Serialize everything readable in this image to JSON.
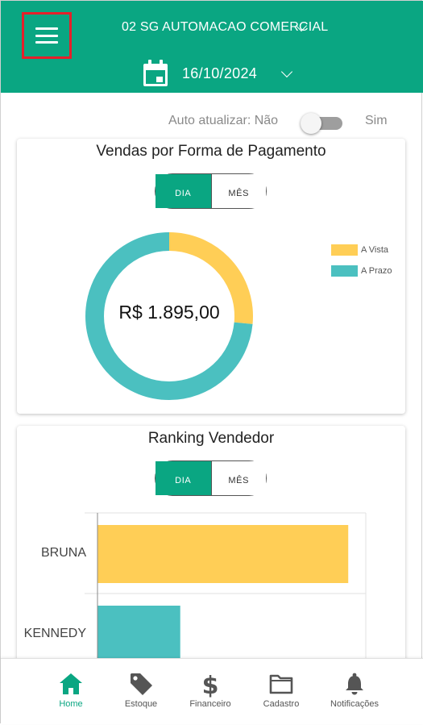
{
  "header": {
    "store_name": "02 SG AUTOMACAO COMERCIAL",
    "date": "16/10/2024"
  },
  "auto_refresh": {
    "label": "Auto atualizar: Não",
    "yes_label": "Sim",
    "enabled": false
  },
  "payment_card": {
    "title": "Vendas por Forma de Pagamento",
    "tabs": [
      {
        "label": "DIA",
        "active": true
      },
      {
        "label": "MÊS",
        "active": false
      }
    ],
    "total": "R$ 1.895,00",
    "legend": [
      {
        "label": "A Vista",
        "color": "#ffce56"
      },
      {
        "label": "A Prazo",
        "color": "#4bc0c0"
      }
    ]
  },
  "chart_data": [
    {
      "type": "pie",
      "title": "Vendas por Forma de Pagamento",
      "categories": [
        "A Vista",
        "A Prazo"
      ],
      "values": [
        0.265,
        0.735
      ],
      "colors": [
        "#ffce56",
        "#4bc0c0"
      ],
      "center_label": "R$ 1.895,00",
      "legend_position": "right"
    },
    {
      "type": "bar",
      "orientation": "horizontal",
      "title": "Ranking Vendedor",
      "categories": [
        "BRUNA",
        "KENNEDY"
      ],
      "values": [
        1.0,
        0.33
      ],
      "colors": [
        "#ffce56",
        "#4bc0c0"
      ],
      "xlim": [
        0,
        1.07
      ]
    }
  ],
  "ranking_card": {
    "title": "Ranking Vendedor",
    "tabs": [
      {
        "label": "DIA",
        "active": true
      },
      {
        "label": "MÊS",
        "active": false
      }
    ]
  },
  "bottom_nav": [
    {
      "label": "Home",
      "icon": "home-icon",
      "active": true
    },
    {
      "label": "Estoque",
      "icon": "tag-icon",
      "active": false
    },
    {
      "label": "Financeiro",
      "icon": "dollar-icon",
      "active": false
    },
    {
      "label": "Cadastro",
      "icon": "folder-icon",
      "active": false
    },
    {
      "label": "Notificações",
      "icon": "bell-icon",
      "active": false
    }
  ],
  "colors": {
    "primary": "#0aa682",
    "a_vista": "#ffce56",
    "a_prazo": "#4bc0c0",
    "highlight_border": "#e5202a"
  }
}
